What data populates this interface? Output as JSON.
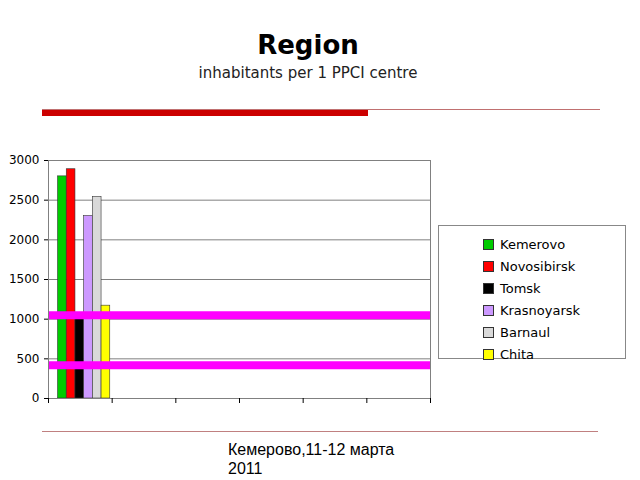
{
  "chart_data": {
    "type": "bar",
    "title": "Region",
    "subtitle": "inhabitants per 1 PPCI centre",
    "caption": "Кемерово,11-12 марта 2011",
    "categories": [
      null,
      null,
      null,
      null,
      null,
      null
    ],
    "series": [
      {
        "name": "Kemerovo",
        "color": "#00cc00",
        "values": [
          2800,
          null,
          null,
          null,
          null,
          null
        ]
      },
      {
        "name": "Novosibirsk",
        "color": "#ff0000",
        "values": [
          2890,
          null,
          null,
          null,
          null,
          null
        ]
      },
      {
        "name": "Tomsk",
        "color": "#000000",
        "values": [
          1000,
          null,
          null,
          null,
          null,
          null
        ]
      },
      {
        "name": "Krasnoyarsk",
        "color": "#cc99ff",
        "values": [
          2300,
          null,
          null,
          null,
          null,
          null
        ]
      },
      {
        "name": "Barnaul",
        "color": "#d9d9d9",
        "values": [
          2540,
          null,
          null,
          null,
          null,
          null
        ]
      },
      {
        "name": "Chita",
        "color": "#ffff00",
        "values": [
          1170,
          null,
          null,
          null,
          null,
          null
        ]
      }
    ],
    "ylim": [
      0,
      3000
    ],
    "yticks": [
      0,
      500,
      1000,
      1500,
      2000,
      2500,
      3000
    ],
    "grid": true,
    "legend": "right",
    "reference_lines": [
      {
        "value": 1050,
        "color": "#ff00ff"
      },
      {
        "value": 420,
        "color": "#ff00ff"
      }
    ]
  }
}
